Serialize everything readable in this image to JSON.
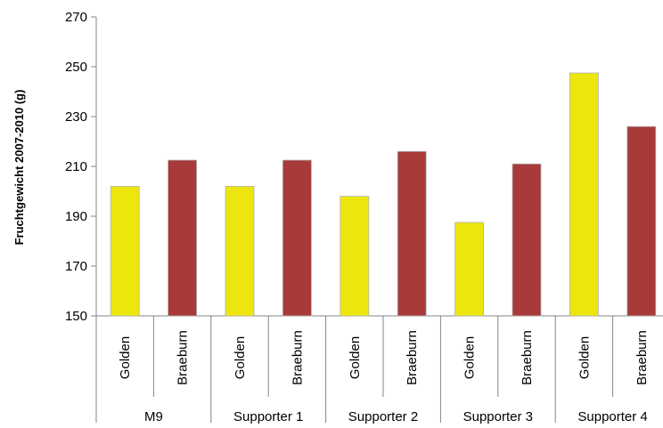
{
  "chart_data": {
    "type": "bar",
    "title": "",
    "ylabel": "Fruchtgewicht 2007-2010 (g)",
    "xlabel": "",
    "ylim": [
      150,
      270
    ],
    "yticks": [
      150,
      170,
      190,
      210,
      230,
      250,
      270
    ],
    "grid": false,
    "legend": "none",
    "groups": [
      {
        "label": "M9",
        "bars": [
          {
            "variety": "Golden",
            "value": 202,
            "color": "#EDE60C"
          },
          {
            "variety": "Braeburn",
            "value": 212.5,
            "color": "#A83A3A"
          }
        ]
      },
      {
        "label": "Supporter 1",
        "bars": [
          {
            "variety": "Golden",
            "value": 202,
            "color": "#EDE60C"
          },
          {
            "variety": "Braeburn",
            "value": 212.5,
            "color": "#A83A3A"
          }
        ]
      },
      {
        "label": "Supporter 2",
        "bars": [
          {
            "variety": "Golden",
            "value": 198,
            "color": "#EDE60C"
          },
          {
            "variety": "Braeburn",
            "value": 216,
            "color": "#A83A3A"
          }
        ]
      },
      {
        "label": "Supporter 3",
        "bars": [
          {
            "variety": "Golden",
            "value": 187.5,
            "color": "#EDE60C"
          },
          {
            "variety": "Braeburn",
            "value": 211,
            "color": "#A83A3A"
          }
        ]
      },
      {
        "label": "Supporter 4",
        "bars": [
          {
            "variety": "Golden",
            "value": 247.5,
            "color": "#EDE60C"
          },
          {
            "variety": "Braeburn",
            "value": 226,
            "color": "#A83A3A"
          }
        ]
      }
    ]
  }
}
